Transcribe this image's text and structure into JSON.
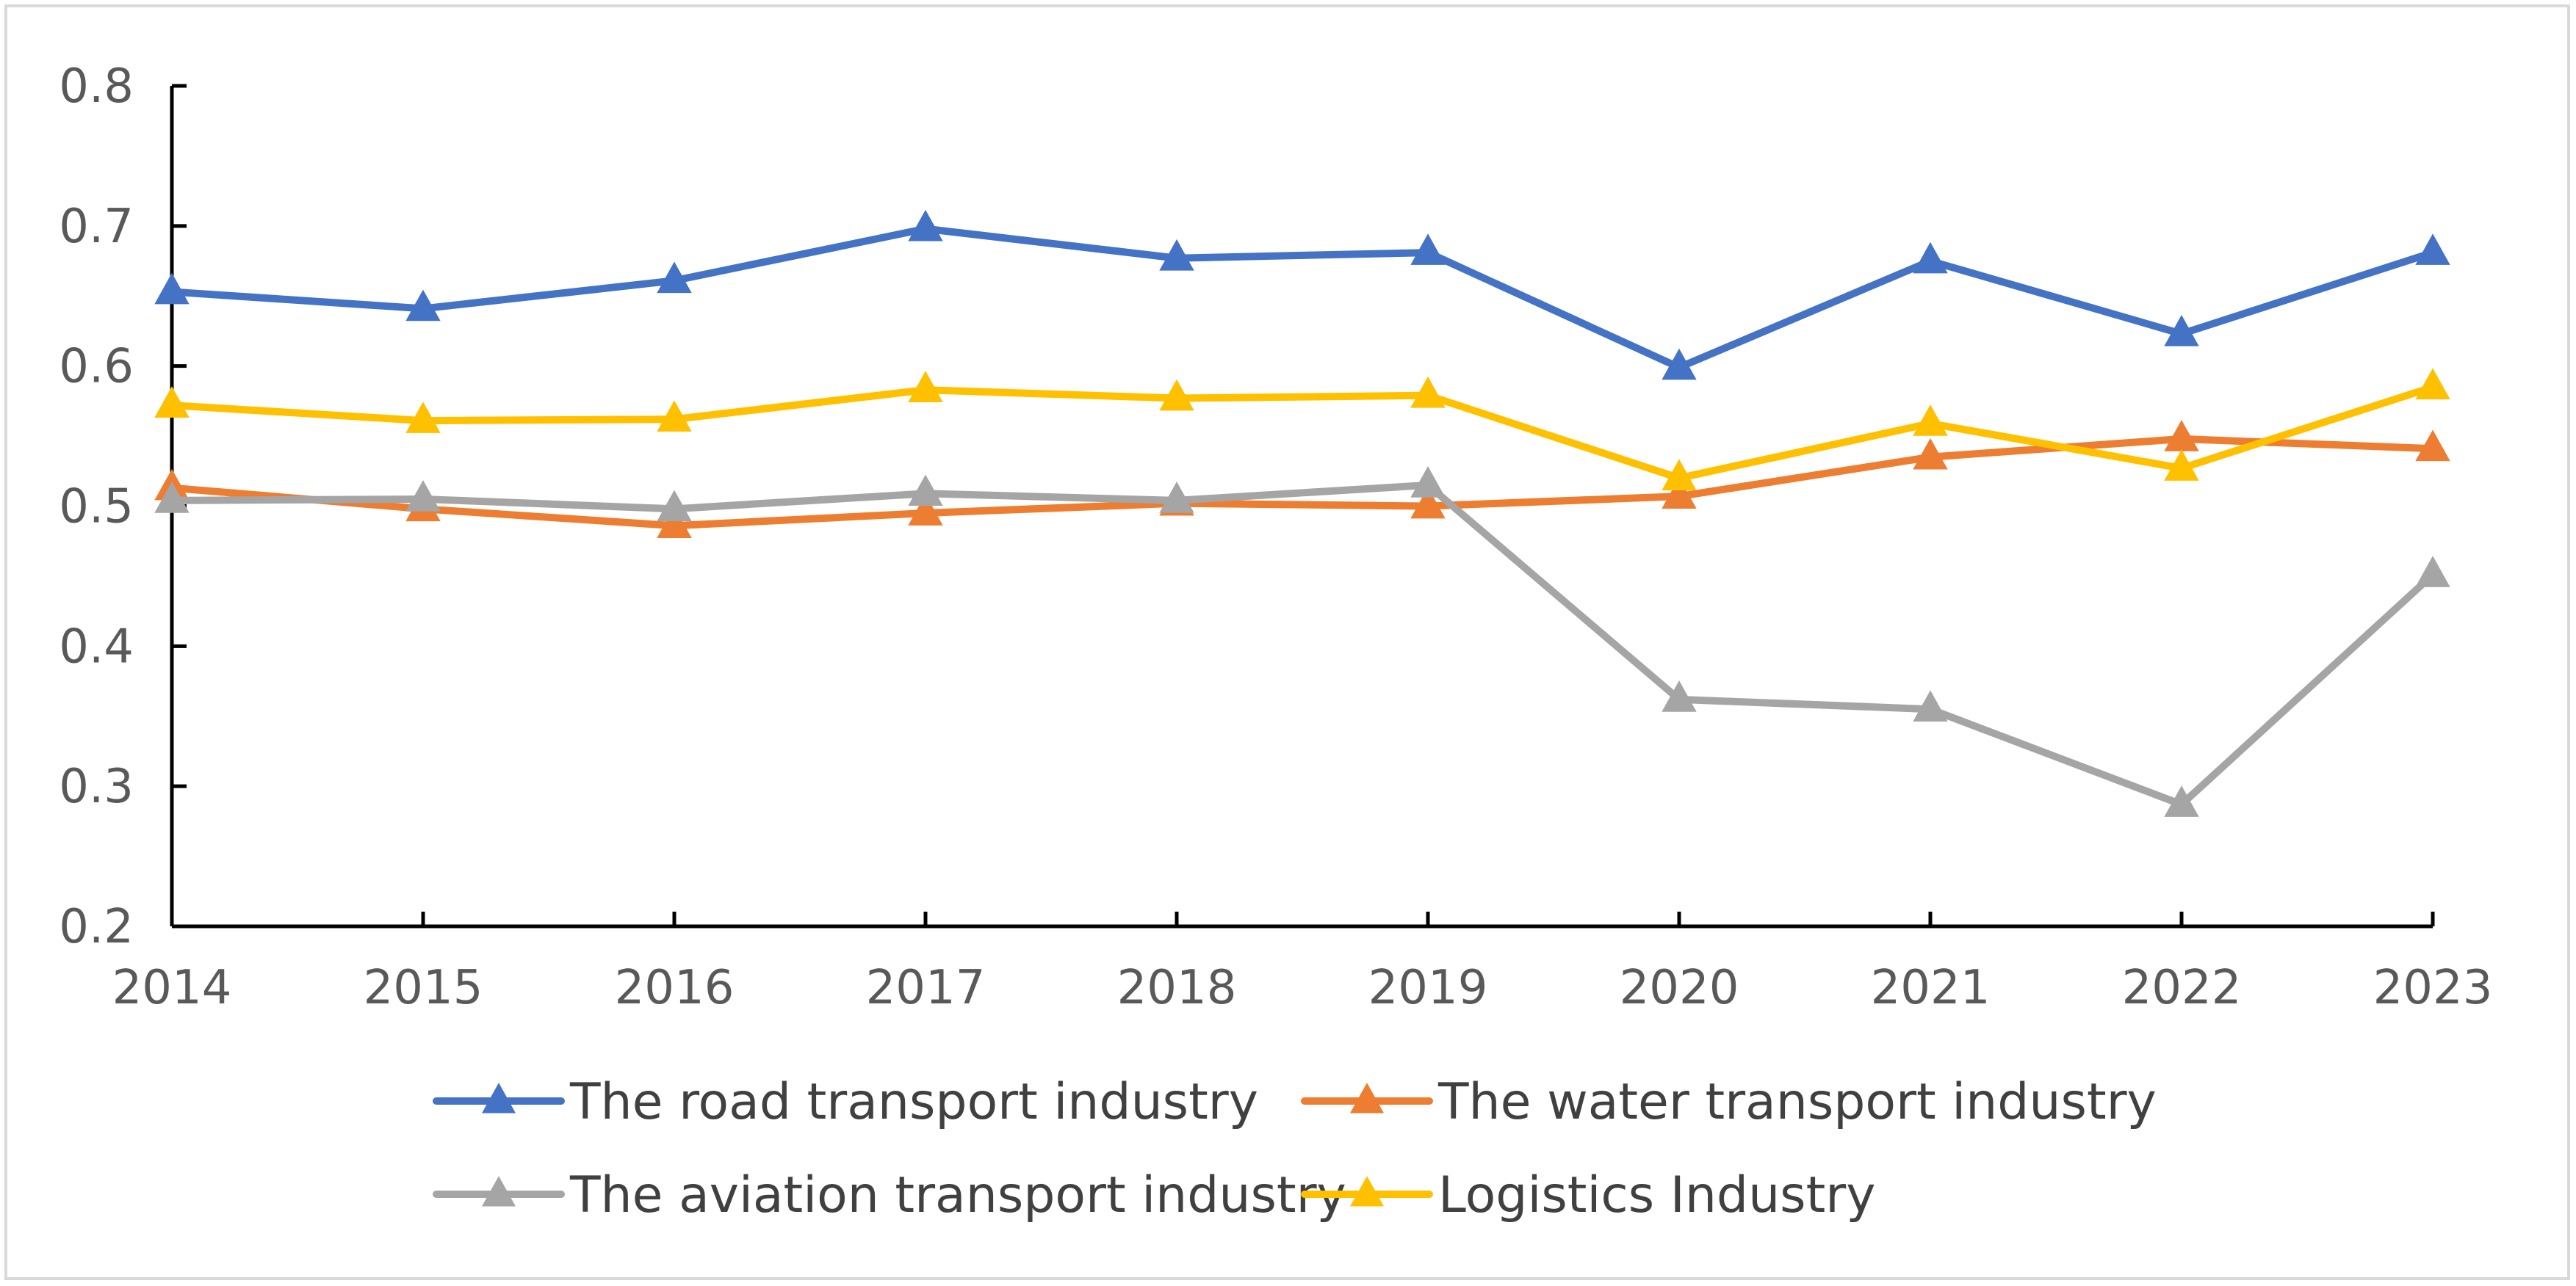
{
  "chart_data": {
    "type": "line",
    "title": "",
    "xlabel": "",
    "ylabel": "",
    "x": [
      2014,
      2015,
      2016,
      2017,
      2018,
      2019,
      2020,
      2021,
      2022,
      2023
    ],
    "categories": [
      "2014",
      "2015",
      "2016",
      "2017",
      "2018",
      "2019",
      "2020",
      "2021",
      "2022",
      "2023"
    ],
    "ylim": [
      0.2,
      0.8
    ],
    "yticks": [
      "0.2",
      "0.3",
      "0.4",
      "0.5",
      "0.6",
      "0.7",
      "0.8"
    ],
    "ytick_values": [
      0.2,
      0.3,
      0.4,
      0.5,
      0.6,
      0.7,
      0.8
    ],
    "grid": false,
    "marker": "triangle",
    "legend_position": "bottom",
    "series": [
      {
        "name": "The road transport industry",
        "color": "#4472C4",
        "values": [
          0.653,
          0.641,
          0.661,
          0.698,
          0.677,
          0.681,
          0.599,
          0.675,
          0.623,
          0.681
        ]
      },
      {
        "name": "The water transport industry",
        "color": "#ED7D31",
        "values": [
          0.513,
          0.498,
          0.486,
          0.495,
          0.502,
          0.5,
          0.507,
          0.535,
          0.548,
          0.541
        ]
      },
      {
        "name": "The aviation transport industry",
        "color": "#A5A5A5",
        "values": [
          0.504,
          0.505,
          0.498,
          0.509,
          0.504,
          0.515,
          0.362,
          0.355,
          0.287,
          0.451
        ]
      },
      {
        "name": "Logistics Industry",
        "color": "#FFC000",
        "values": [
          0.572,
          0.561,
          0.562,
          0.583,
          0.577,
          0.579,
          0.52,
          0.559,
          0.527,
          0.585
        ]
      }
    ]
  }
}
